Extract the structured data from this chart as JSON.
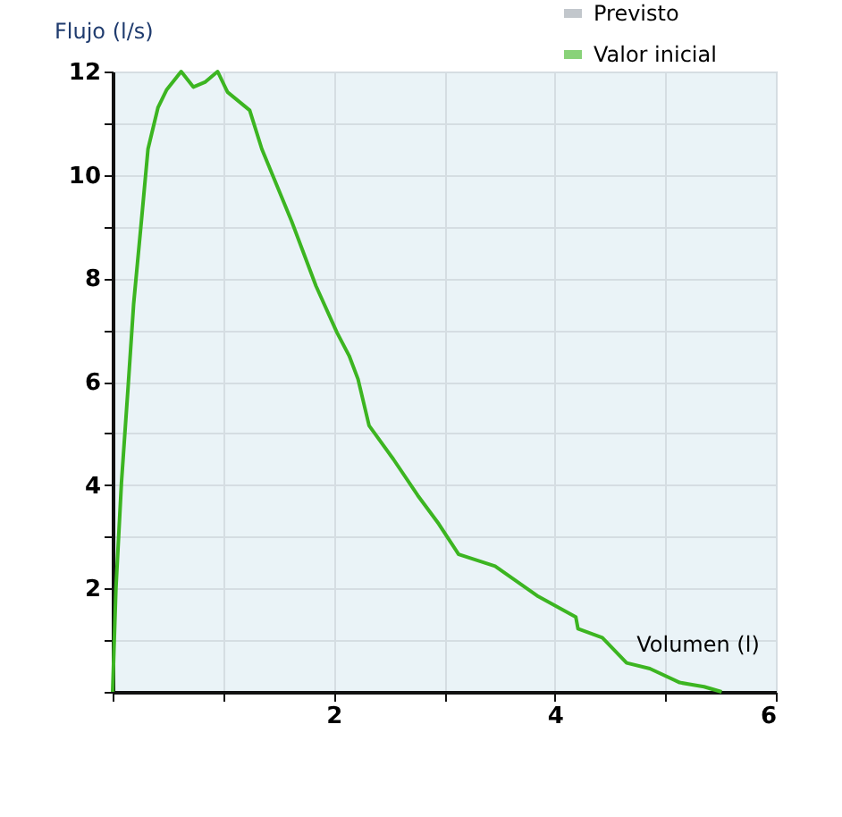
{
  "chart_data": {
    "type": "line",
    "xlabel": "Volumen (l)",
    "ylabel": "Flujo (l/s)",
    "xlim": [
      0,
      6
    ],
    "ylim": [
      0,
      12
    ],
    "xticks": [
      {
        "value": 0,
        "label": null
      },
      {
        "value": 1,
        "label": null
      },
      2,
      {
        "value": 3,
        "label": null
      },
      4,
      {
        "value": 5,
        "label": null
      },
      6
    ],
    "yticks": [
      {
        "value": 0,
        "label": null
      },
      {
        "value": 1,
        "label": null
      },
      2,
      {
        "value": 3,
        "label": null
      },
      4,
      {
        "value": 5,
        "label": null
      },
      6,
      {
        "value": 7,
        "label": null
      },
      8,
      {
        "value": 9,
        "label": null
      },
      10,
      {
        "value": 11,
        "label": null
      },
      12
    ],
    "grid": true,
    "legend": "top right",
    "line_style": "solid",
    "series": [
      {
        "name": "Previsto",
        "type": "area",
        "color": "#9aa3ab"
      },
      {
        "name": "Valor inicial",
        "color": "#3cb521",
        "x": [
          0,
          0.03,
          0.08,
          0.14,
          0.19,
          0.26,
          0.32,
          0.41,
          0.49,
          0.62,
          0.73,
          0.84,
          0.95,
          1.04,
          1.24,
          1.35,
          1.62,
          1.84,
          2.03,
          2.14,
          2.22,
          2.32,
          2.54,
          2.76,
          2.95,
          3.13,
          3.46,
          3.84,
          4.19,
          4.21,
          4.43,
          4.65,
          4.86,
          5.13,
          5.35,
          5.51
        ],
        "values": [
          0,
          2.0,
          4.05,
          5.9,
          7.5,
          9.1,
          10.5,
          11.3,
          11.65,
          12.0,
          11.7,
          11.8,
          12.0,
          11.6,
          11.25,
          10.5,
          9.1,
          7.85,
          6.95,
          6.5,
          6.05,
          5.15,
          4.5,
          3.8,
          3.25,
          2.66,
          2.43,
          1.86,
          1.45,
          1.22,
          1.05,
          0.56,
          0.45,
          0.18,
          0.1,
          0
        ]
      }
    ]
  }
}
